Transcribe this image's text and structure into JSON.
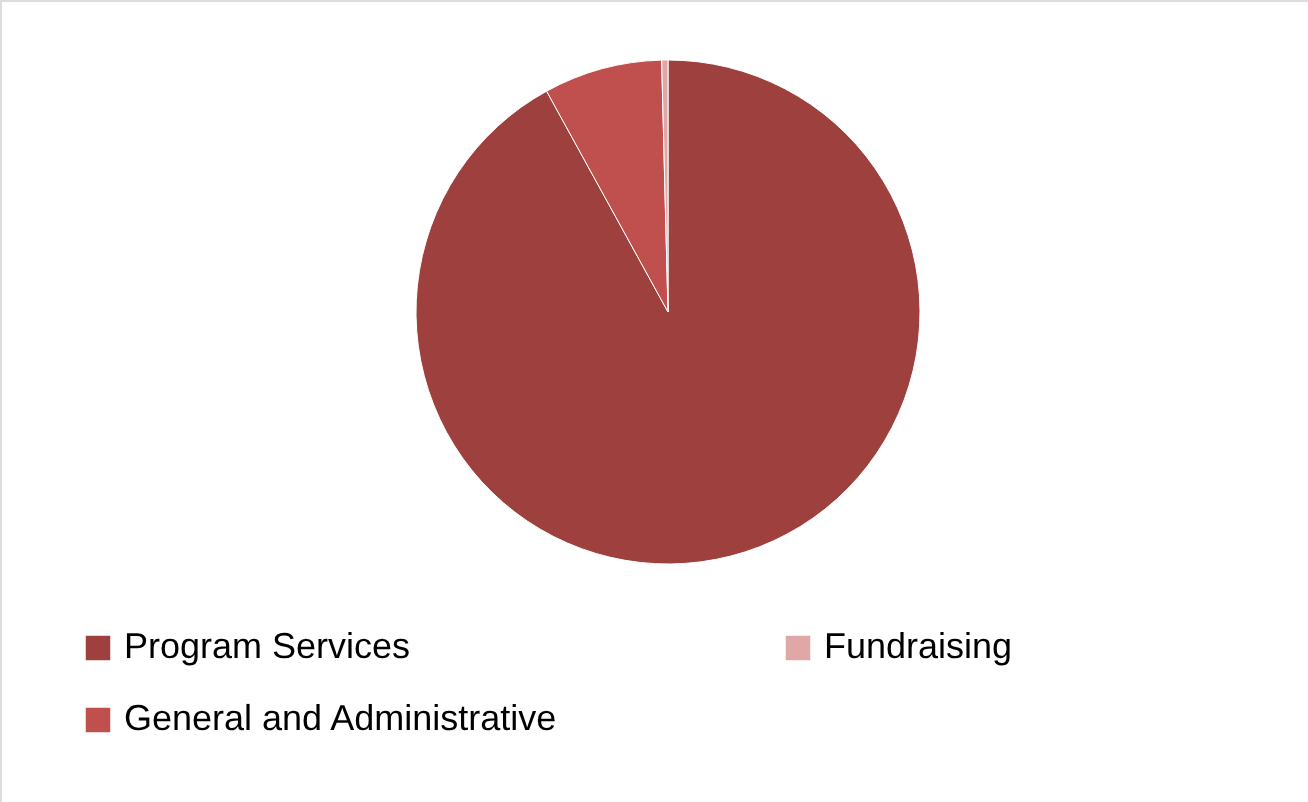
{
  "chart_data": {
    "type": "pie",
    "categories": [
      "Program Services",
      "General and Administrative",
      "Fundraising"
    ],
    "values": [
      92.0,
      7.6,
      0.4
    ],
    "colors": [
      "#9e413e",
      "#c0504d",
      "#dfa8a6"
    ],
    "legend": "bottom"
  }
}
